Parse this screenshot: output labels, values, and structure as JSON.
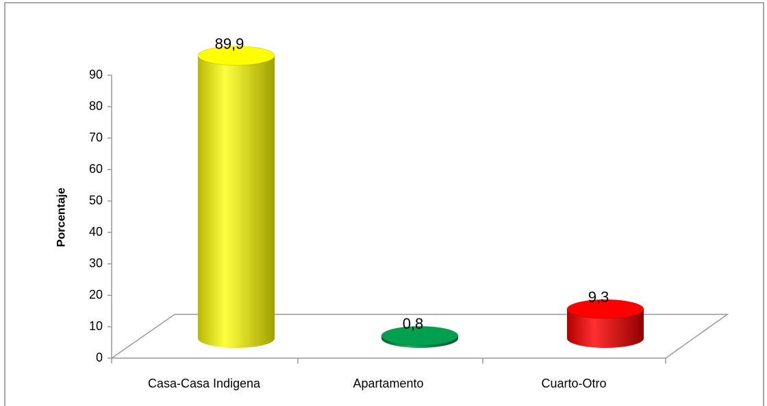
{
  "chart_data": {
    "type": "bar3d",
    "y_label": "Porcentaje",
    "categories": [
      "Casa-Casa Indigena",
      "Apartamento",
      "Cuarto-Otro"
    ],
    "values": [
      89.9,
      0.8,
      9.3
    ],
    "value_labels": [
      "89,9",
      "0,8",
      "9,3"
    ],
    "colors": [
      "#ffff00",
      "#00a050",
      "#ff0000"
    ],
    "ylim": [
      0,
      90
    ],
    "yticks": [
      0,
      10,
      20,
      30,
      40,
      50,
      60,
      70,
      80,
      90
    ],
    "grid": false
  }
}
